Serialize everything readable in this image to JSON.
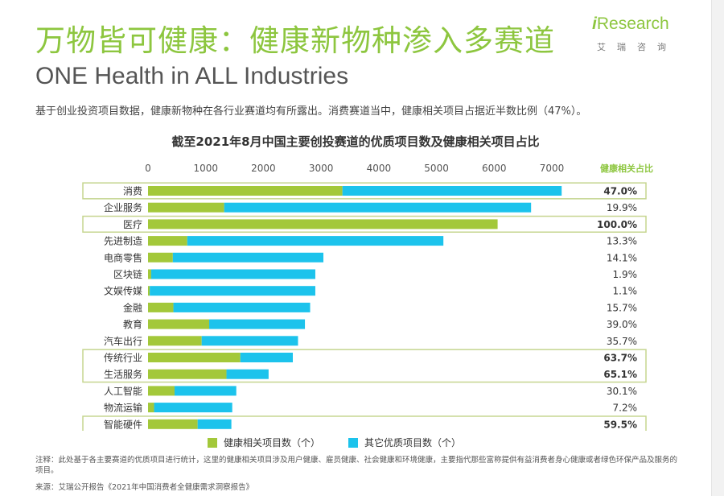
{
  "header": {
    "title": "万物皆可健康：健康新物种渗入多赛道",
    "subtitle": "ONE Health in ALL Industries",
    "description": "基于创业投资项目数据，健康新物种在各行业赛道均有所露出。消费赛道当中，健康相关项目占据近半数比例（47%）。"
  },
  "logo": {
    "brand_prefix": "i",
    "brand_rest": "Research",
    "brand_cn": "艾瑞咨询"
  },
  "colors": {
    "accent_green": "#8dc63f",
    "series_green": "#a3c83a",
    "series_cyan": "#1cc3ec",
    "highlight_border": "#c5d58f"
  },
  "chart_data": {
    "type": "bar",
    "orientation": "horizontal",
    "stacked": true,
    "title": "截至2021年8月中国主要创投赛道的优质项目数及健康相关项目占比",
    "xlim": [
      0,
      7000
    ],
    "xticks": [
      "0",
      "1000",
      "2000",
      "3000",
      "4000",
      "5000",
      "6000",
      "7000"
    ],
    "ratio_header": "健康相关占比",
    "categories": [
      "消费",
      "企业服务",
      "医疗",
      "先进制造",
      "电商零售",
      "区块链",
      "文娱传媒",
      "金融",
      "教育",
      "汽车出行",
      "传统行业",
      "生活服务",
      "人工智能",
      "物流运输",
      "智能硬件"
    ],
    "series": [
      {
        "name": "健康相关项目数（个）",
        "values": [
          3370,
          1320,
          6060,
          680,
          430,
          55,
          30,
          440,
          1060,
          930,
          1600,
          1360,
          460,
          105,
          860
        ]
      },
      {
        "name": "其它优质项目数（个）",
        "values": [
          3800,
          5320,
          0,
          4440,
          2610,
          2845,
          2870,
          2370,
          1660,
          1670,
          910,
          730,
          1070,
          1355,
          585
        ]
      }
    ],
    "ratios": [
      "47.0%",
      "19.9%",
      "100.0%",
      "13.3%",
      "14.1%",
      "1.9%",
      "1.1%",
      "15.7%",
      "39.0%",
      "35.7%",
      "63.7%",
      "65.1%",
      "30.1%",
      "7.2%",
      "59.5%"
    ],
    "highlight_groups": [
      [
        0
      ],
      [
        2
      ],
      [
        10,
        11
      ],
      [
        14
      ]
    ],
    "legend_position": "bottom"
  },
  "footer": {
    "notes": "注释：此处基于各主要赛道的优质项目进行统计，这里的健康相关项目涉及用户健康、雇员健康、社会健康和环境健康，主要指代那些富称提供有益消费者身心健康或者绿色环保产品及服务的项目。",
    "source": "来源：艾瑞公开报告《2021年中国消费者全健康需求洞察报告》"
  }
}
